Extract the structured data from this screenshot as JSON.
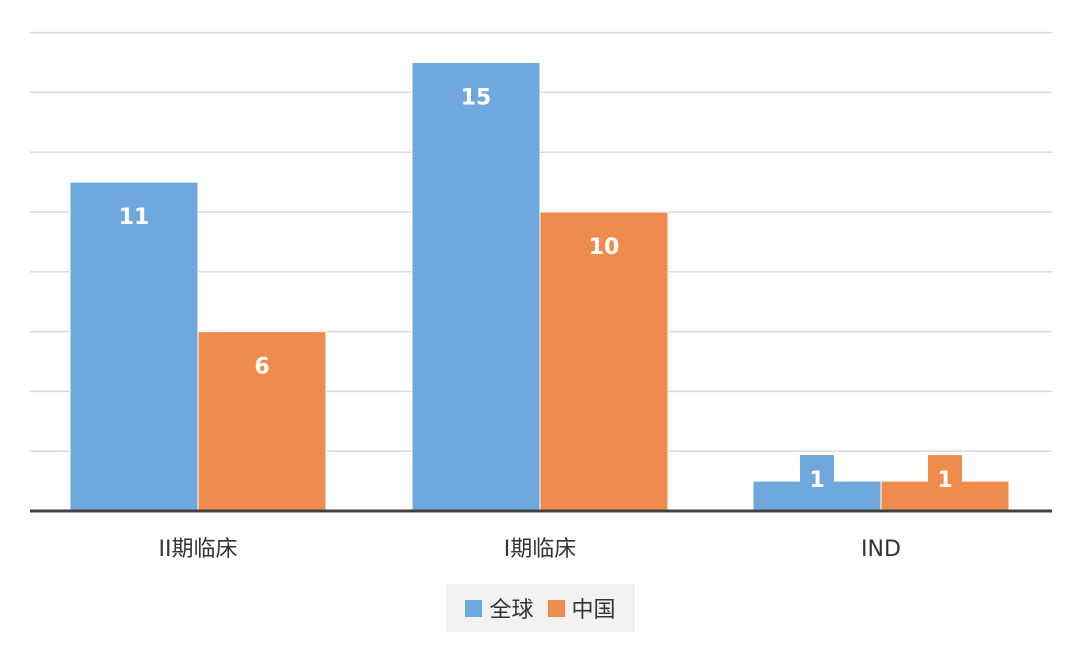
{
  "chart_data": {
    "type": "bar",
    "categories": [
      "II期临床",
      "I期临床",
      "IND"
    ],
    "series": [
      {
        "name": "全球",
        "values": [
          11,
          15,
          1
        ],
        "color": "#6fa8dc"
      },
      {
        "name": "中国",
        "values": [
          6,
          10,
          1
        ],
        "color": "#ef8c4d"
      }
    ],
    "title": "",
    "xlabel": "",
    "ylabel": "",
    "ylim": [
      0,
      16
    ],
    "grid": true,
    "legend_position": "bottom-center",
    "data_labels": true
  },
  "colors": {
    "grid": "#d9d9d9",
    "axis": "#404040",
    "label_text": "#ffffff",
    "category_text": "#333333"
  }
}
